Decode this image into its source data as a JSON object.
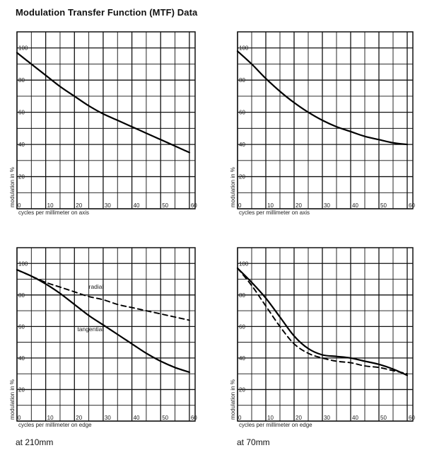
{
  "title": "Modulation Transfer Function (MTF) Data",
  "captions": {
    "left": "at 210mm",
    "right": "at 70mm"
  },
  "chart_data": [
    {
      "type": "line",
      "panel": "top-left",
      "xlabel": "cycles per millimeter on axis",
      "ylabel": "modulation in %",
      "xlim": [
        0,
        62
      ],
      "ylim": [
        0,
        110
      ],
      "x_ticks": [
        0,
        10,
        20,
        30,
        40,
        50,
        60
      ],
      "y_ticks": [
        0,
        20,
        40,
        60,
        80,
        100
      ],
      "grid": true,
      "series": [
        {
          "style": "solid",
          "x": [
            0,
            5,
            10,
            15,
            20,
            25,
            30,
            35,
            40,
            45,
            50,
            55,
            60
          ],
          "y": [
            97,
            90,
            83,
            76,
            70,
            64,
            59,
            55,
            51,
            47,
            43,
            39,
            35
          ]
        }
      ]
    },
    {
      "type": "line",
      "panel": "top-right",
      "xlabel": "cycles per millimeter on axis",
      "ylabel": "modulation in %",
      "xlim": [
        0,
        62
      ],
      "ylim": [
        0,
        110
      ],
      "x_ticks": [
        0,
        10,
        20,
        30,
        40,
        50,
        60
      ],
      "y_ticks": [
        0,
        20,
        40,
        60,
        80,
        100
      ],
      "grid": true,
      "series": [
        {
          "style": "solid",
          "x": [
            0,
            5,
            10,
            15,
            20,
            25,
            30,
            35,
            40,
            45,
            50,
            55,
            60
          ],
          "y": [
            98,
            90,
            81,
            73,
            66,
            60,
            55,
            51,
            48,
            45,
            43,
            41,
            40
          ]
        }
      ]
    },
    {
      "type": "line",
      "panel": "bottom-left",
      "xlabel": "cycles per millimeter on edge",
      "ylabel": "modulation in %",
      "xlim": [
        0,
        62
      ],
      "ylim": [
        0,
        110
      ],
      "x_ticks": [
        0,
        10,
        20,
        30,
        40,
        50,
        60
      ],
      "y_ticks": [
        0,
        20,
        40,
        60,
        80,
        100
      ],
      "grid": true,
      "annotations": [
        {
          "text": "radial",
          "x": 25,
          "y": 84
        },
        {
          "text": "tangential",
          "x": 21,
          "y": 57
        }
      ],
      "series": [
        {
          "name": "radial",
          "style": "dashed",
          "x": [
            0,
            5,
            10,
            15,
            20,
            25,
            30,
            35,
            40,
            45,
            50,
            55,
            60
          ],
          "y": [
            96,
            92,
            88,
            85,
            82,
            79,
            77,
            74,
            72,
            70,
            68,
            66,
            64
          ]
        },
        {
          "name": "tangential",
          "style": "solid",
          "x": [
            0,
            5,
            10,
            15,
            20,
            25,
            30,
            35,
            40,
            45,
            50,
            55,
            60
          ],
          "y": [
            96,
            92,
            87,
            81,
            74,
            67,
            61,
            55,
            49,
            43,
            38,
            34,
            31
          ]
        }
      ]
    },
    {
      "type": "line",
      "panel": "bottom-right",
      "xlabel": "cycles per millimeter on edge",
      "ylabel": "modulation in %",
      "xlim": [
        0,
        62
      ],
      "ylim": [
        0,
        110
      ],
      "x_ticks": [
        0,
        10,
        20,
        30,
        40,
        50,
        60
      ],
      "y_ticks": [
        0,
        20,
        40,
        60,
        80,
        100
      ],
      "grid": true,
      "series": [
        {
          "style": "solid",
          "x": [
            0,
            5,
            10,
            15,
            20,
            25,
            30,
            35,
            40,
            45,
            50,
            55,
            60
          ],
          "y": [
            97,
            88,
            78,
            66,
            54,
            46,
            42,
            41,
            40,
            38,
            36,
            33,
            29
          ]
        },
        {
          "style": "dashed",
          "x": [
            0,
            5,
            10,
            15,
            20,
            25,
            30,
            35,
            40,
            45,
            50,
            55,
            60
          ],
          "y": [
            97,
            86,
            73,
            60,
            49,
            43,
            40,
            38,
            37,
            35,
            34,
            32,
            30
          ]
        }
      ]
    }
  ]
}
